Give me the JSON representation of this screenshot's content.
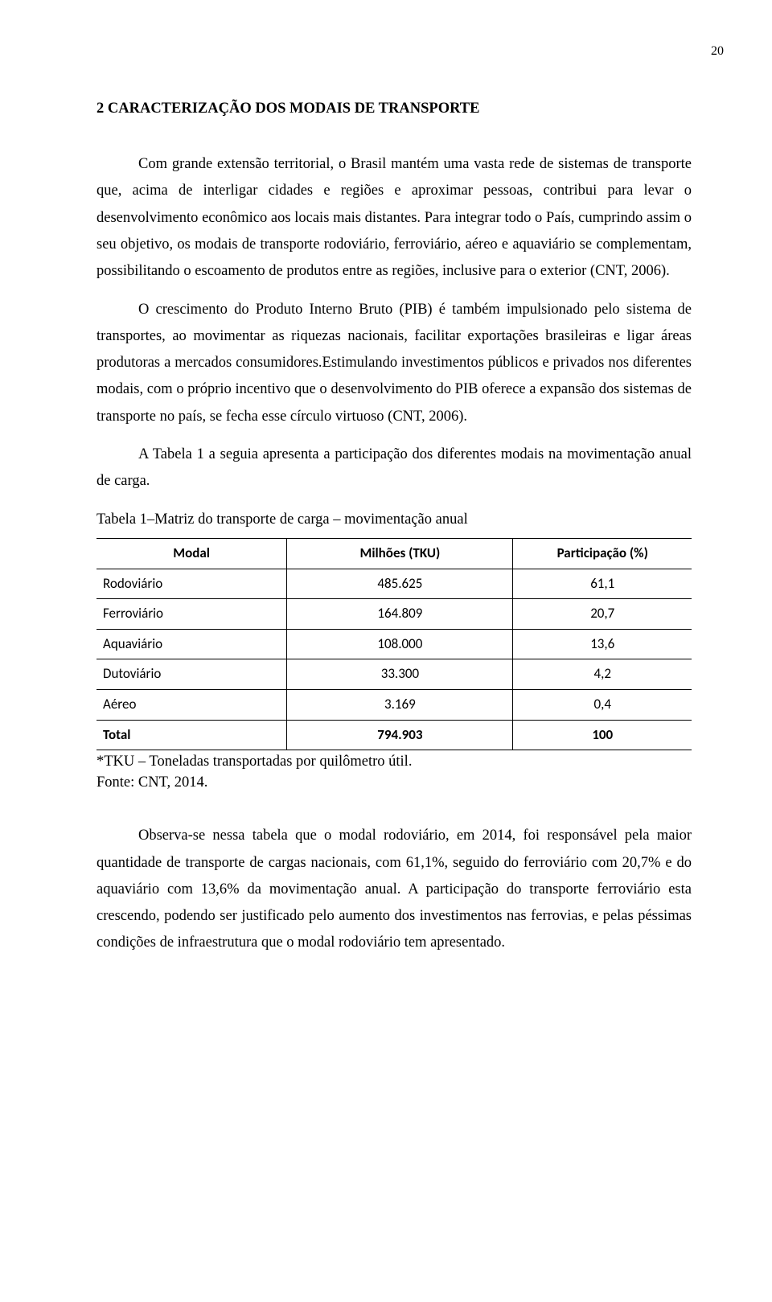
{
  "page_number": "20",
  "heading": "2   CARACTERIZAÇÃO DOS MODAIS DE TRANSPORTE",
  "paragraphs": {
    "p1": "Com grande extensão territorial, o Brasil mantém uma vasta rede de sistemas de transporte que, acima de interligar cidades e regiões e aproximar pessoas, contribui para levar o desenvolvimento econômico aos locais mais distantes. Para integrar todo o País, cumprindo assim o seu objetivo, os modais de transporte rodoviário, ferroviário, aéreo e aquaviário se complementam, possibilitando o escoamento de produtos entre as regiões, inclusive para o exterior (CNT, 2006).",
    "p2": "O crescimento do Produto Interno Bruto (PIB) é também impulsionado pelo sistema de transportes, ao movimentar as riquezas nacionais, facilitar exportações brasileiras e ligar áreas produtoras a mercados consumidores.Estimulando investimentos públicos e privados nos diferentes modais, com o próprio incentivo que o desenvolvimento do PIB oferece a expansão dos sistemas de transporte no país, se fecha esse círculo virtuoso (CNT, 2006).",
    "p3": "A Tabela 1 a seguia apresenta a participação dos diferentes modais na movimentação anual de carga.",
    "p4": "Observa-se nessa tabela que o modal rodoviário, em 2014, foi responsável pela maior quantidade de transporte de cargas nacionais, com 61,1%, seguido do ferroviário com 20,7% e do aquaviário com 13,6% da movimentação anual. A participação do transporte ferroviário esta crescendo, podendo ser justificado pelo aumento dos investimentos nas ferrovias, e pelas péssimas condições de infraestrutura que o modal rodoviário tem apresentado."
  },
  "table": {
    "caption": "Tabela 1–Matriz do transporte de carga – movimentação anual",
    "columns": [
      "Modal",
      "Milhões (TKU)",
      "Participação (%)"
    ],
    "rows": [
      [
        "Rodoviário",
        "485.625",
        "61,1"
      ],
      [
        "Ferroviário",
        "164.809",
        "20,7"
      ],
      [
        "Aquaviário",
        "108.000",
        "13,6"
      ],
      [
        "Dutoviário",
        "33.300",
        "4,2"
      ],
      [
        "Aéreo",
        "3.169",
        "0,4"
      ],
      [
        "Total",
        "794.903",
        "100"
      ]
    ],
    "col_widths": [
      "32%",
      "38%",
      "30%"
    ],
    "footnote": "*TKU – Toneladas transportadas por quilômetro útil.",
    "source": "Fonte: CNT, 2014."
  },
  "colors": {
    "text": "#000000",
    "background": "#ffffff",
    "border": "#000000"
  },
  "fonts": {
    "body_family": "Times New Roman",
    "table_family": "Calibri",
    "body_size_pt": 12,
    "table_size_pt": 11
  }
}
